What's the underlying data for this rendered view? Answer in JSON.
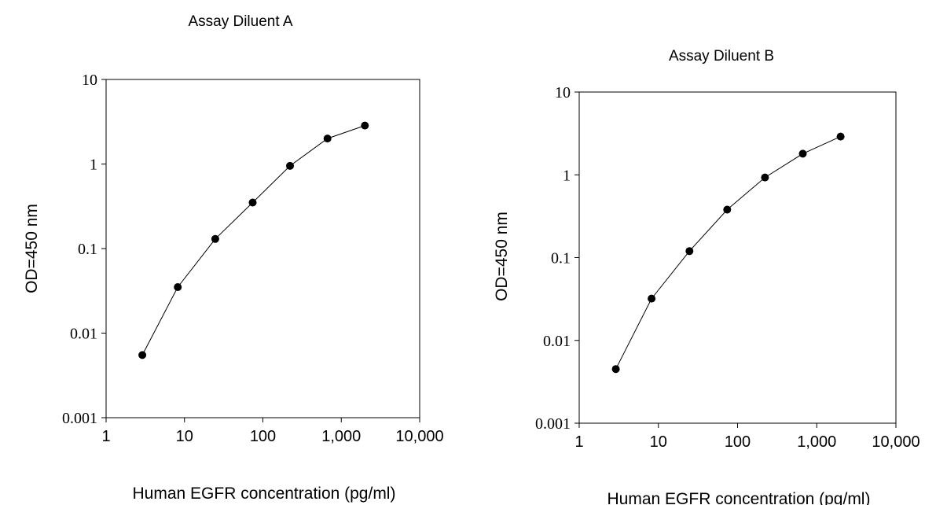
{
  "chart_data": [
    {
      "type": "line",
      "title": "Assay Diluent A",
      "xlabel": "Human EGFR concentration (pg/ml)",
      "ylabel": "OD=450 nm",
      "x_scale": "log",
      "y_scale": "log",
      "xlim": [
        1,
        10000
      ],
      "ylim": [
        0.001,
        10
      ],
      "xticks": [
        "1",
        "10",
        "100",
        "1,000",
        "10,000"
      ],
      "yticks": [
        "0.001",
        "0.01",
        "0.1",
        "1",
        "10"
      ],
      "grid": false,
      "series": [
        {
          "x": [
            2.9,
            8.2,
            24.7,
            74,
            222,
            667,
            2000
          ],
          "y": [
            0.0055,
            0.035,
            0.13,
            0.35,
            0.95,
            2.0,
            2.85
          ]
        }
      ]
    },
    {
      "type": "line",
      "title": "Assay Diluent B",
      "xlabel": "Human EGFR concentration (pg/ml)",
      "ylabel": "OD=450 nm",
      "x_scale": "log",
      "y_scale": "log",
      "xlim": [
        1,
        10000
      ],
      "ylim": [
        0.001,
        10
      ],
      "xticks": [
        "1",
        "10",
        "100",
        "1,000",
        "10,000"
      ],
      "yticks": [
        "0.001",
        "0.01",
        "0.1",
        "1",
        "10"
      ],
      "grid": false,
      "series": [
        {
          "x": [
            2.9,
            8.2,
            24.7,
            74,
            222,
            667,
            2000
          ],
          "y": [
            0.0045,
            0.032,
            0.12,
            0.38,
            0.93,
            1.8,
            2.9
          ]
        }
      ]
    }
  ]
}
